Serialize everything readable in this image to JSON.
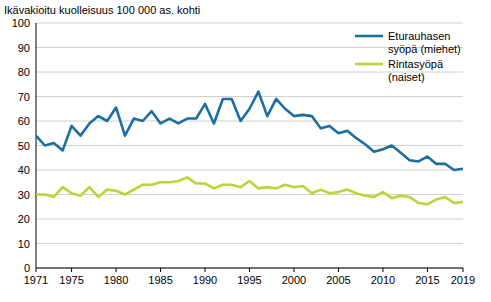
{
  "chart_data": {
    "type": "line",
    "ylabel": "Ikävakioitu kuolleisuus 100 000 as. kohti",
    "x": [
      1971,
      1972,
      1973,
      1974,
      1975,
      1976,
      1977,
      1978,
      1979,
      1980,
      1981,
      1982,
      1983,
      1984,
      1985,
      1986,
      1987,
      1988,
      1989,
      1990,
      1991,
      1992,
      1993,
      1994,
      1995,
      1996,
      1997,
      1998,
      1999,
      2000,
      2001,
      2002,
      2003,
      2004,
      2005,
      2006,
      2007,
      2008,
      2009,
      2010,
      2011,
      2012,
      2013,
      2014,
      2015,
      2016,
      2017,
      2018,
      2019
    ],
    "series": [
      {
        "name": "Eturauhasen syöpä (miehet)",
        "color": "#1b6fa0",
        "values": [
          54,
          50,
          51,
          48,
          58,
          54,
          59,
          62,
          60,
          65.5,
          54,
          61,
          60,
          64,
          59,
          61,
          59,
          61,
          61,
          67,
          59,
          69,
          69,
          60,
          65,
          72,
          62,
          69,
          65,
          62,
          62.5,
          62,
          57,
          58,
          55,
          56,
          53,
          50.5,
          47.5,
          48.5,
          50,
          47,
          44,
          43.5,
          45.5,
          42.5,
          42.5,
          40,
          40.5
        ]
      },
      {
        "name": "Rintasyöpä (naiset)",
        "color": "#bcd435",
        "values": [
          30,
          30,
          29,
          33,
          30.5,
          29.5,
          33,
          29,
          32,
          31.5,
          30,
          32,
          34,
          34,
          35,
          35,
          35.5,
          37,
          34.5,
          34.5,
          32.5,
          34,
          34,
          33,
          35.5,
          32.5,
          33,
          32.5,
          34,
          33,
          33.5,
          30.5,
          32,
          30.5,
          31,
          32,
          30.5,
          29.5,
          29,
          31,
          28.5,
          29.5,
          29,
          26.5,
          26,
          28,
          29,
          26.5,
          27
        ]
      }
    ],
    "xlim": [
      1971,
      2019
    ],
    "xticks": [
      1971,
      1975,
      1980,
      1985,
      1990,
      1995,
      2000,
      2005,
      2010,
      2015,
      2019
    ],
    "ylim": [
      0,
      100
    ],
    "yticks": [
      0,
      10,
      20,
      30,
      40,
      50,
      60,
      70,
      80,
      90,
      100
    ],
    "grid": true,
    "legend": "top-right"
  }
}
